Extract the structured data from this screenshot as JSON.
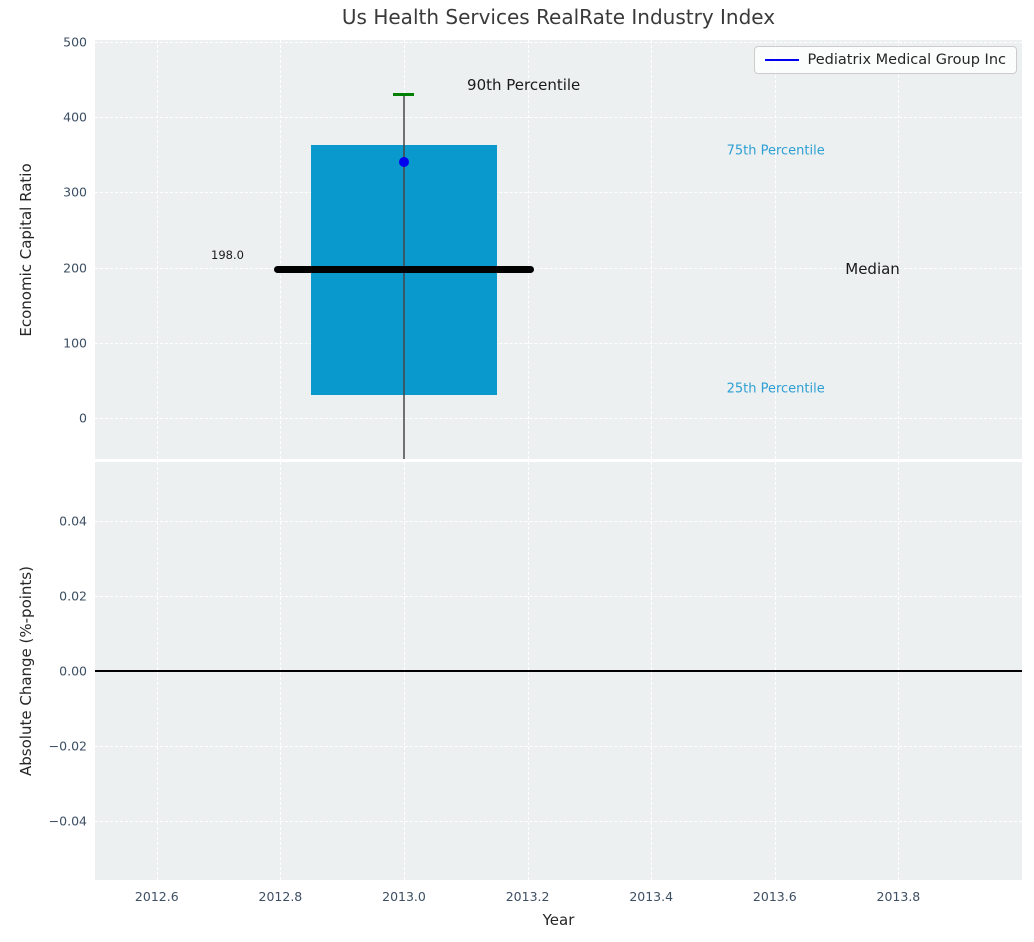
{
  "chart_data": {
    "type": "boxplot",
    "title": "Us Health Services RealRate Industry Index",
    "xlabel": "Year",
    "xlim": [
      2012.5,
      2014.0
    ],
    "grid": "white dashed on light-gray panels",
    "x_ticks": [
      {
        "v": 2012.6,
        "label": "2012.6"
      },
      {
        "v": 2012.8,
        "label": "2012.8"
      },
      {
        "v": 2013.0,
        "label": "2013.0"
      },
      {
        "v": 2013.2,
        "label": "2013.2"
      },
      {
        "v": 2013.4,
        "label": "2013.4"
      },
      {
        "v": 2013.6,
        "label": "2013.6"
      },
      {
        "v": 2013.8,
        "label": "2013.8"
      }
    ],
    "legend": {
      "label": "Pediatrix Medical Group Inc",
      "position": "upper right",
      "line_color": "#0000ee"
    },
    "panels": [
      {
        "name": "economic-capital-ratio",
        "ylabel": "Economic Capital Ratio",
        "ylim": [
          -55,
          503
        ],
        "y_ticks": [
          {
            "v": 500,
            "label": "500"
          },
          {
            "v": 400,
            "label": "400"
          },
          {
            "v": 300,
            "label": "300"
          },
          {
            "v": 200,
            "label": "200"
          },
          {
            "v": 100,
            "label": "100"
          },
          {
            "v": 0,
            "label": "0"
          }
        ],
        "box": {
          "x": 2013.0,
          "width": 0.3,
          "q1": 30,
          "median": 198,
          "q3": 363,
          "p90": 430,
          "whisker_low_clipped_at": -55,
          "median_label": "198.0",
          "median_span": [
            2012.79,
            2013.21
          ],
          "cap_halfwidth": 0.017,
          "fill": "#0a99cc",
          "median_color": "#000000",
          "cap_color": "#008000",
          "whisker_color": "rgba(70,70,70,0.75)"
        },
        "series": [
          {
            "name": "Pediatrix Medical Group Inc",
            "type": "point",
            "x": 2013.0,
            "y": 340,
            "color": "#0000ee"
          }
        ],
        "annotations": [
          {
            "id": "p90-label",
            "text": "90th Percentile",
            "x": 2013.102,
            "y": 443,
            "color": "#1a1a1a",
            "size": 15,
            "align": "left"
          },
          {
            "id": "p75-label",
            "text": "75th Percentile",
            "x": 2013.522,
            "y": 355,
            "color": "#2e9fd4",
            "size": 13,
            "align": "left"
          },
          {
            "id": "median-label",
            "text": "Median",
            "x": 2013.714,
            "y": 198,
            "color": "#1a1a1a",
            "size": 15,
            "align": "left"
          },
          {
            "id": "p25-label",
            "text": "25th Percentile",
            "x": 2013.522,
            "y": 38,
            "color": "#2e9fd4",
            "size": 13,
            "align": "left"
          },
          {
            "id": "median-value",
            "text": "198.0",
            "x": 2012.741,
            "y": 217,
            "color": "#1a1a1a",
            "size": 11.5,
            "align": "right"
          }
        ]
      },
      {
        "name": "absolute-change",
        "ylabel": "Absolute Change (%-points)",
        "ylim": [
          -0.0557,
          0.0557
        ],
        "y_ticks": [
          {
            "v": 0.04,
            "label": "0.04"
          },
          {
            "v": 0.02,
            "label": "0.02"
          },
          {
            "v": 0.0,
            "label": "0.00"
          },
          {
            "v": -0.02,
            "label": "−0.02"
          },
          {
            "v": -0.04,
            "label": "−0.04"
          }
        ],
        "zero_line": {
          "y": 0.0,
          "color": "#000000"
        }
      }
    ],
    "colors": {
      "panel_bg": "#ecf0f1",
      "grid": "#ffffff",
      "tick_label": "#3d4f63",
      "text": "#262626",
      "title": "#3a3a3a"
    }
  }
}
